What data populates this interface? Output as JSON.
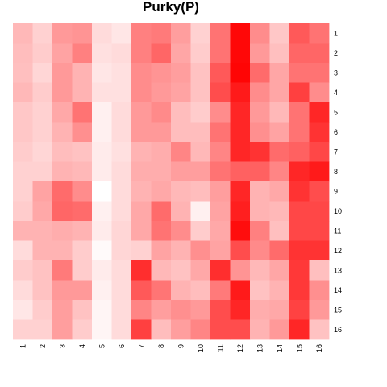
{
  "chart_data": {
    "type": "heatmap",
    "title": "Purky(P)",
    "xlabel": "",
    "ylabel": "",
    "x_categories": [
      "1",
      "2",
      "3",
      "4",
      "5",
      "6",
      "7",
      "8",
      "9",
      "10",
      "11",
      "12",
      "13",
      "14",
      "15",
      "16"
    ],
    "y_categories": [
      "1",
      "2",
      "3",
      "4",
      "5",
      "6",
      "7",
      "8",
      "9",
      "10",
      "11",
      "12",
      "13",
      "14",
      "15",
      "16"
    ],
    "value_range": [
      0,
      1
    ],
    "color_low": "#ffffff",
    "color_high": "#ff0000",
    "legend": "none",
    "grid": false,
    "values": [
      [
        0.28,
        0.18,
        0.4,
        0.42,
        0.14,
        0.1,
        0.5,
        0.52,
        0.38,
        0.18,
        0.55,
        0.97,
        0.45,
        0.22,
        0.65,
        0.55
      ],
      [
        0.26,
        0.2,
        0.36,
        0.5,
        0.12,
        0.14,
        0.5,
        0.6,
        0.35,
        0.2,
        0.55,
        0.97,
        0.4,
        0.25,
        0.6,
        0.6
      ],
      [
        0.25,
        0.16,
        0.4,
        0.3,
        0.1,
        0.12,
        0.45,
        0.42,
        0.38,
        0.24,
        0.65,
        0.98,
        0.58,
        0.35,
        0.55,
        0.55
      ],
      [
        0.28,
        0.2,
        0.4,
        0.3,
        0.12,
        0.12,
        0.45,
        0.4,
        0.36,
        0.24,
        0.7,
        0.9,
        0.45,
        0.35,
        0.75,
        0.45
      ],
      [
        0.22,
        0.18,
        0.34,
        0.55,
        0.06,
        0.14,
        0.4,
        0.46,
        0.26,
        0.2,
        0.45,
        0.85,
        0.4,
        0.28,
        0.55,
        0.85
      ],
      [
        0.22,
        0.18,
        0.3,
        0.44,
        0.06,
        0.14,
        0.4,
        0.4,
        0.26,
        0.26,
        0.55,
        0.85,
        0.44,
        0.36,
        0.55,
        0.8
      ],
      [
        0.2,
        0.16,
        0.26,
        0.24,
        0.08,
        0.12,
        0.3,
        0.32,
        0.48,
        0.28,
        0.48,
        0.85,
        0.8,
        0.58,
        0.62,
        0.72
      ],
      [
        0.18,
        0.18,
        0.3,
        0.28,
        0.08,
        0.14,
        0.32,
        0.32,
        0.38,
        0.38,
        0.55,
        0.62,
        0.62,
        0.48,
        0.85,
        0.9
      ],
      [
        0.18,
        0.36,
        0.58,
        0.45,
        0.0,
        0.14,
        0.3,
        0.34,
        0.28,
        0.26,
        0.38,
        0.85,
        0.3,
        0.34,
        0.8,
        0.7
      ],
      [
        0.2,
        0.34,
        0.6,
        0.58,
        0.06,
        0.14,
        0.34,
        0.58,
        0.3,
        0.06,
        0.36,
        0.88,
        0.3,
        0.28,
        0.72,
        0.72
      ],
      [
        0.3,
        0.3,
        0.32,
        0.3,
        0.08,
        0.16,
        0.34,
        0.55,
        0.45,
        0.2,
        0.34,
        0.95,
        0.5,
        0.25,
        0.72,
        0.72
      ],
      [
        0.14,
        0.3,
        0.3,
        0.2,
        0.02,
        0.16,
        0.18,
        0.36,
        0.3,
        0.44,
        0.36,
        0.7,
        0.46,
        0.58,
        0.8,
        0.8
      ],
      [
        0.2,
        0.24,
        0.52,
        0.2,
        0.08,
        0.14,
        0.82,
        0.28,
        0.24,
        0.34,
        0.82,
        0.42,
        0.28,
        0.35,
        0.78,
        0.25
      ],
      [
        0.14,
        0.24,
        0.4,
        0.4,
        0.06,
        0.14,
        0.65,
        0.54,
        0.3,
        0.26,
        0.52,
        0.9,
        0.24,
        0.3,
        0.78,
        0.44
      ],
      [
        0.1,
        0.2,
        0.38,
        0.24,
        0.04,
        0.14,
        0.48,
        0.38,
        0.44,
        0.4,
        0.7,
        0.85,
        0.32,
        0.34,
        0.74,
        0.4
      ],
      [
        0.18,
        0.18,
        0.38,
        0.2,
        0.04,
        0.14,
        0.75,
        0.26,
        0.38,
        0.48,
        0.7,
        0.7,
        0.3,
        0.4,
        0.85,
        0.24
      ]
    ]
  }
}
